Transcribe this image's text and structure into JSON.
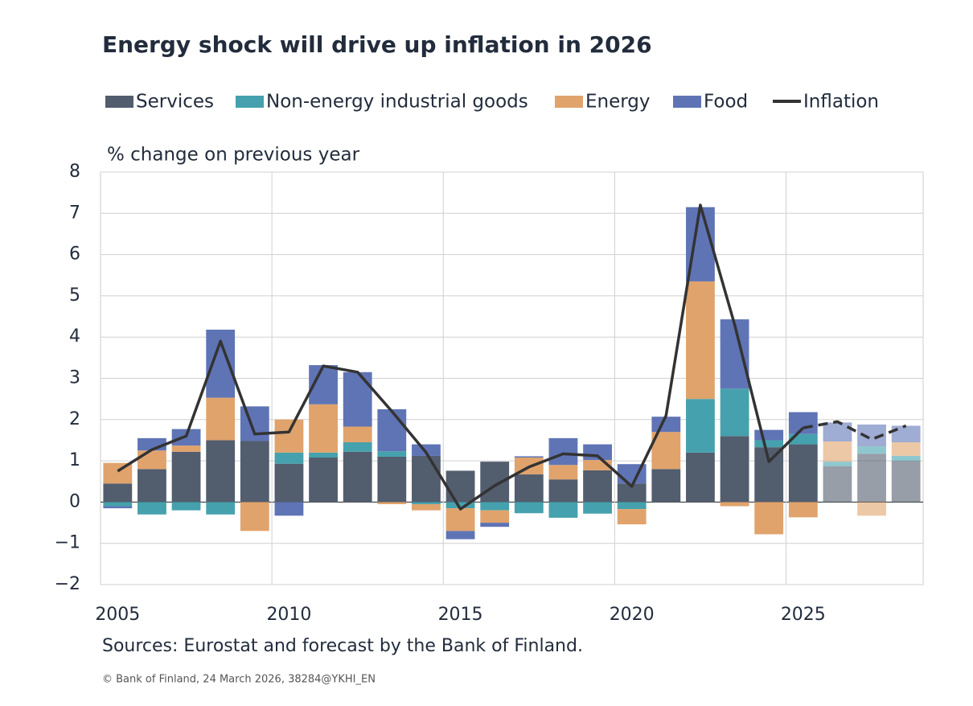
{
  "chart_data": {
    "type": "bar",
    "stacked": true,
    "title": "Energy shock will drive up inflation in 2026",
    "y_label": "% change on previous year",
    "source": "Sources: Eurostat and forecast by the Bank of Finland.",
    "credit": "© Bank of Finland, 24 March 2026, 38284@YKHI_EN",
    "categories": [
      "2005",
      null,
      null,
      null,
      null,
      "2010",
      null,
      null,
      null,
      null,
      "2015",
      null,
      null,
      null,
      null,
      "2020",
      null,
      null,
      null,
      null,
      "2025",
      null,
      null,
      null
    ],
    "forecast": [
      false,
      false,
      false,
      false,
      false,
      false,
      false,
      false,
      false,
      false,
      false,
      false,
      false,
      false,
      false,
      false,
      false,
      false,
      false,
      false,
      false,
      true,
      true,
      true
    ],
    "ylim": [
      -2,
      8
    ],
    "yticks": [
      {
        "value": -2,
        "label": "−2"
      },
      {
        "value": -1,
        "label": "−1"
      },
      0,
      1,
      2,
      3,
      4,
      5,
      6,
      7,
      8
    ],
    "grid": true,
    "series": [
      {
        "name": "Services",
        "type": "bar",
        "color": "#525d6e",
        "values": [
          0.45,
          0.8,
          1.22,
          1.5,
          1.48,
          0.93,
          1.08,
          1.22,
          1.1,
          1.12,
          0.76,
          0.98,
          0.67,
          0.55,
          0.77,
          0.45,
          0.8,
          1.2,
          1.6,
          1.33,
          1.4,
          0.87,
          1.17,
          1.0
        ]
      },
      {
        "name": "Non-energy industrial goods",
        "type": "bar",
        "color": "#45a1ad",
        "values": [
          -0.1,
          -0.3,
          -0.2,
          -0.3,
          0,
          0.27,
          0.12,
          0.23,
          0.13,
          -0.05,
          -0.15,
          -0.2,
          -0.27,
          -0.38,
          -0.28,
          -0.17,
          0,
          1.3,
          1.15,
          0.17,
          0.25,
          0.11,
          0.18,
          0.12
        ]
      },
      {
        "name": "Energy",
        "type": "bar",
        "color": "#e0a36c",
        "values": [
          0.5,
          0.45,
          0.15,
          1.03,
          -0.7,
          0.8,
          1.17,
          0.38,
          -0.05,
          -0.15,
          -0.55,
          -0.3,
          0.41,
          0.35,
          0.25,
          -0.37,
          0.9,
          2.85,
          -0.1,
          -0.78,
          -0.37,
          0.49,
          -0.33,
          0.33
        ]
      },
      {
        "name": "Food",
        "type": "bar",
        "color": "#5f74b5",
        "values": [
          -0.05,
          0.3,
          0.4,
          1.65,
          0.84,
          -0.33,
          0.95,
          1.32,
          1.02,
          0.28,
          -0.2,
          -0.1,
          0.03,
          0.65,
          0.38,
          0.47,
          0.37,
          1.8,
          1.68,
          0.25,
          0.53,
          0.46,
          0.53,
          0.4
        ]
      },
      {
        "name": "Inflation",
        "type": "line",
        "color": "#333333",
        "values": [
          0.75,
          1.27,
          1.6,
          3.9,
          1.65,
          1.7,
          3.3,
          3.15,
          2.2,
          1.2,
          -0.17,
          0.4,
          0.85,
          1.17,
          1.12,
          0.38,
          2.1,
          7.2,
          4.3,
          0.98,
          1.8,
          1.95,
          1.52,
          1.85
        ]
      }
    ]
  }
}
